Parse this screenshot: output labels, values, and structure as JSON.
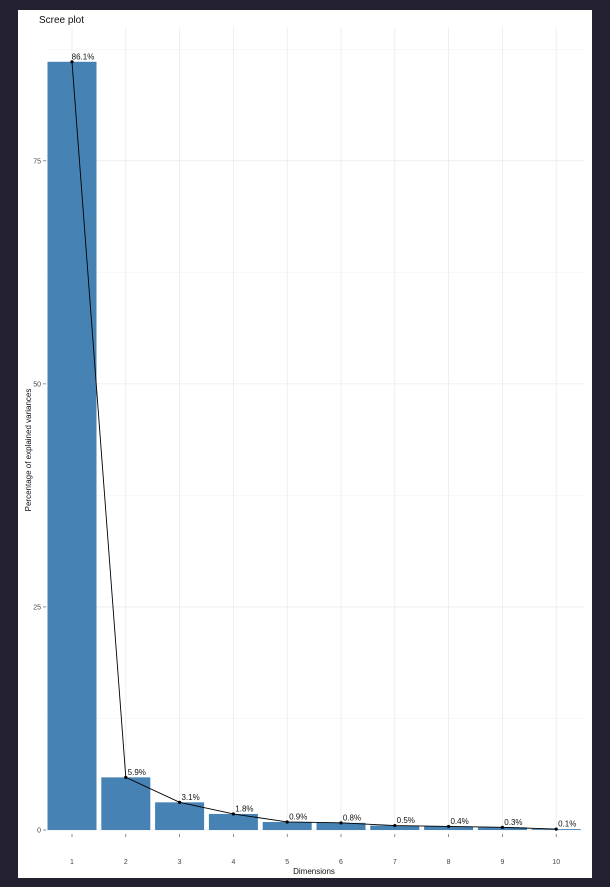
{
  "chart_data": {
    "type": "bar",
    "title": "Scree plot",
    "xlabel": "Dimensions",
    "ylabel": "Percentage of explained variances",
    "categories": [
      "1",
      "2",
      "3",
      "4",
      "5",
      "6",
      "7",
      "8",
      "9",
      "10"
    ],
    "values": [
      86.1,
      5.9,
      3.1,
      1.8,
      0.9,
      0.8,
      0.5,
      0.4,
      0.3,
      0.1
    ],
    "data_labels": [
      "86.1%",
      "5.9%",
      "3.1%",
      "1.8%",
      "0.9%",
      "0.8%",
      "0.5%",
      "0.4%",
      "0.3%",
      "0.1%"
    ],
    "y_ticks": [
      0,
      25,
      50,
      75
    ],
    "ylim": [
      0,
      90
    ],
    "grid": true,
    "legend": "none",
    "overlay_line": true,
    "colors": {
      "bar": "#4682b4",
      "line": "#000000",
      "background": "#ffffff"
    }
  }
}
